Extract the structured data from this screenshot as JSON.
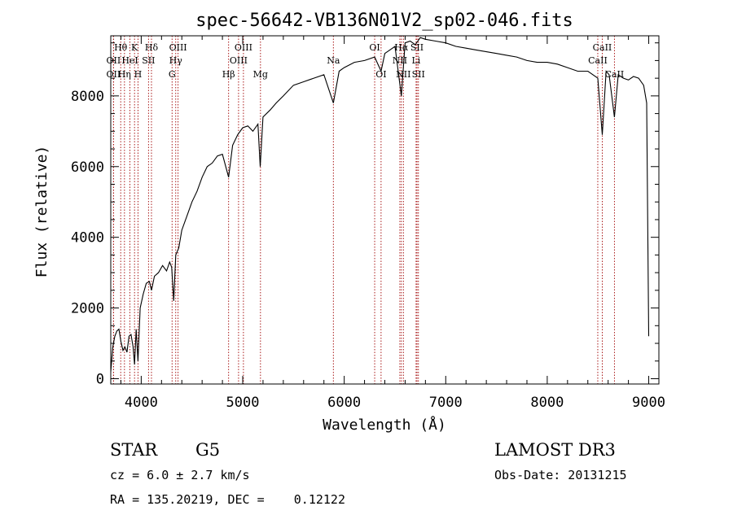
{
  "chart_data": {
    "type": "line",
    "title": "spec-56642-VB136N01V2_sp02-046.fits",
    "xlabel": "Wavelength (Å)",
    "ylabel": "Flux (relative)",
    "xlim": [
      3700,
      9100
    ],
    "ylim": [
      -150,
      9700
    ],
    "xticks": [
      4000,
      5000,
      6000,
      7000,
      8000,
      9000
    ],
    "yticks": [
      0,
      2000,
      4000,
      6000,
      8000
    ],
    "grid": false,
    "series": [
      {
        "x": [
          3700,
          3720,
          3740,
          3760,
          3780,
          3800,
          3820,
          3840,
          3860,
          3880,
          3900,
          3920,
          3934,
          3950,
          3968,
          3990,
          4020,
          4050,
          4080,
          4101,
          4130,
          4170,
          4210,
          4250,
          4280,
          4300,
          4320,
          4340,
          4370,
          4400,
          4450,
          4500,
          4550,
          4600,
          4650,
          4700,
          4750,
          4800,
          4861,
          4900,
          4950,
          5000,
          5050,
          5100,
          5150,
          5172,
          5200,
          5270,
          5330,
          5400,
          5500,
          5600,
          5700,
          5800,
          5893,
          5950,
          6000,
          6100,
          6200,
          6300,
          6363,
          6400,
          6450,
          6500,
          6563,
          6600,
          6650,
          6700,
          6750,
          6800,
          6900,
          7000,
          7100,
          7200,
          7300,
          7400,
          7500,
          7600,
          7700,
          7800,
          7900,
          8000,
          8100,
          8200,
          8300,
          8400,
          8498,
          8542,
          8580,
          8610,
          8662,
          8700,
          8750,
          8800,
          8850,
          8900,
          8950,
          8980,
          9000
        ],
        "values": [
          200,
          900,
          1200,
          1350,
          1400,
          1050,
          800,
          900,
          750,
          1200,
          1250,
          900,
          400,
          1400,
          500,
          2000,
          2400,
          2700,
          2750,
          2500,
          2900,
          3000,
          3200,
          3050,
          3300,
          3150,
          2200,
          3500,
          3700,
          4200,
          4600,
          5000,
          5300,
          5700,
          6000,
          6100,
          6300,
          6350,
          5700,
          6600,
          6900,
          7100,
          7150,
          7000,
          7200,
          6000,
          7400,
          7600,
          7800,
          8000,
          8300,
          8400,
          8500,
          8600,
          7800,
          8700,
          8800,
          8950,
          9000,
          9100,
          8700,
          9200,
          9300,
          9400,
          8000,
          9500,
          9550,
          9450,
          9650,
          9600,
          9550,
          9500,
          9400,
          9350,
          9300,
          9250,
          9200,
          9150,
          9100,
          9000,
          8950,
          8950,
          8900,
          8800,
          8700,
          8700,
          8500,
          6900,
          8700,
          8600,
          7400,
          8600,
          8500,
          8450,
          8550,
          8500,
          8300,
          7800,
          1200
        ]
      }
    ],
    "spectral_lines": [
      {
        "label": "Hθ",
        "wave": 3798,
        "row": 1
      },
      {
        "label": "OII",
        "wave": 3727,
        "row": 2
      },
      {
        "label": "OII",
        "wave": 3727,
        "row": 3
      },
      {
        "label": "Hη",
        "wave": 3835,
        "row": 3
      },
      {
        "label": "HeI",
        "wave": 3889,
        "row": 2
      },
      {
        "label": "K",
        "wave": 3934,
        "row": 1
      },
      {
        "label": "H",
        "wave": 3968,
        "row": 3
      },
      {
        "label": "SII",
        "wave": 4072,
        "row": 2
      },
      {
        "label": "Hδ",
        "wave": 4101,
        "row": 1
      },
      {
        "label": "OIII",
        "wave": 4363,
        "row": 1
      },
      {
        "label": "Hγ",
        "wave": 4340,
        "row": 2
      },
      {
        "label": "G",
        "wave": 4304,
        "row": 3
      },
      {
        "label": "Hβ",
        "wave": 4861,
        "row": 3
      },
      {
        "label": "OIII",
        "wave": 4959,
        "row": 2
      },
      {
        "label": "OIII",
        "wave": 5007,
        "row": 1
      },
      {
        "label": "Mg",
        "wave": 5175,
        "row": 3
      },
      {
        "label": "Na",
        "wave": 5893,
        "row": 2
      },
      {
        "label": "OI",
        "wave": 6300,
        "row": 1
      },
      {
        "label": "OI",
        "wave": 6363,
        "row": 3
      },
      {
        "label": "Hα",
        "wave": 6563,
        "row": 1
      },
      {
        "label": "NII",
        "wave": 6548,
        "row": 2
      },
      {
        "label": "NII",
        "wave": 6583,
        "row": 3
      },
      {
        "label": "SII",
        "wave": 6717,
        "row": 1
      },
      {
        "label": "Li",
        "wave": 6708,
        "row": 2
      },
      {
        "label": "SII",
        "wave": 6731,
        "row": 3
      },
      {
        "label": "CaII",
        "wave": 8542,
        "row": 1
      },
      {
        "label": "CaII",
        "wave": 8498,
        "row": 2
      },
      {
        "label": "CaII",
        "wave": 8662,
        "row": 3
      }
    ]
  },
  "info": {
    "object_class": "STAR",
    "subclass": "G5",
    "survey": "LAMOST DR3",
    "cz": "cz = 6.0 ± 2.7 km/s",
    "obs_date": "Obs-Date: 20131215",
    "coords": "RA = 135.20219, DEC =    0.12122"
  },
  "colors": {
    "line_marker": "#a00000",
    "spectrum": "#000000"
  }
}
